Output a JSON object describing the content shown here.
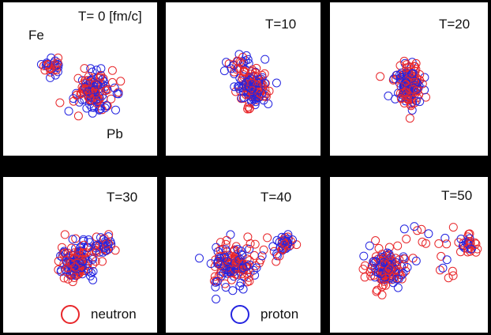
{
  "panels": [
    {
      "time_label": "T= 0 [fm/c]"
    },
    {
      "time_label": "T=10"
    },
    {
      "time_label": "T=20"
    },
    {
      "time_label": "T=30"
    },
    {
      "time_label": "T=40"
    },
    {
      "time_label": "T=50"
    }
  ],
  "labels": {
    "projectile": "Fe",
    "target": "Pb"
  },
  "legend": [
    {
      "label": "neutron",
      "color": "#e8262a"
    },
    {
      "label": "proton",
      "color": "#2424e0"
    }
  ]
}
